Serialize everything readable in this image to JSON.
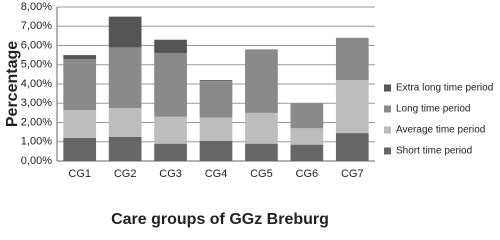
{
  "chart_data": {
    "type": "stacked_bar",
    "y_label": "Percentage",
    "x_label": "Care groups of GGz Breburg",
    "categories": [
      "CG1",
      "CG2",
      "CG3",
      "CG4",
      "CG5",
      "CG6",
      "CG7"
    ],
    "series": [
      {
        "name": "Short time period",
        "color": "#666666",
        "values": [
          1.2,
          1.25,
          0.9,
          1.05,
          0.9,
          0.85,
          1.45
        ]
      },
      {
        "name": "Average time period",
        "color": "#bdbdbd",
        "values": [
          1.45,
          1.5,
          1.4,
          1.2,
          1.6,
          0.85,
          2.75
        ]
      },
      {
        "name": "Long time period",
        "color": "#8a8a8a",
        "values": [
          2.65,
          3.15,
          3.3,
          1.9,
          3.3,
          1.3,
          2.2
        ]
      },
      {
        "name": "Extra long time period",
        "color": "#555555",
        "values": [
          0.2,
          1.6,
          0.7,
          0.05,
          0,
          0,
          0
        ]
      }
    ],
    "ylim": [
      0,
      8
    ],
    "yticks": [
      {
        "value": 0,
        "label": "0,00%"
      },
      {
        "value": 1,
        "label": "1,00%"
      },
      {
        "value": 2,
        "label": "2,00%"
      },
      {
        "value": 3,
        "label": "3,00%"
      },
      {
        "value": 4,
        "label": "4,00%"
      },
      {
        "value": 5,
        "label": "5,00%"
      },
      {
        "value": 6,
        "label": "6,00%"
      },
      {
        "value": 7,
        "label": "7,00%"
      },
      {
        "value": 8,
        "label": "8,00%"
      }
    ],
    "grid": true,
    "legend": "right"
  }
}
